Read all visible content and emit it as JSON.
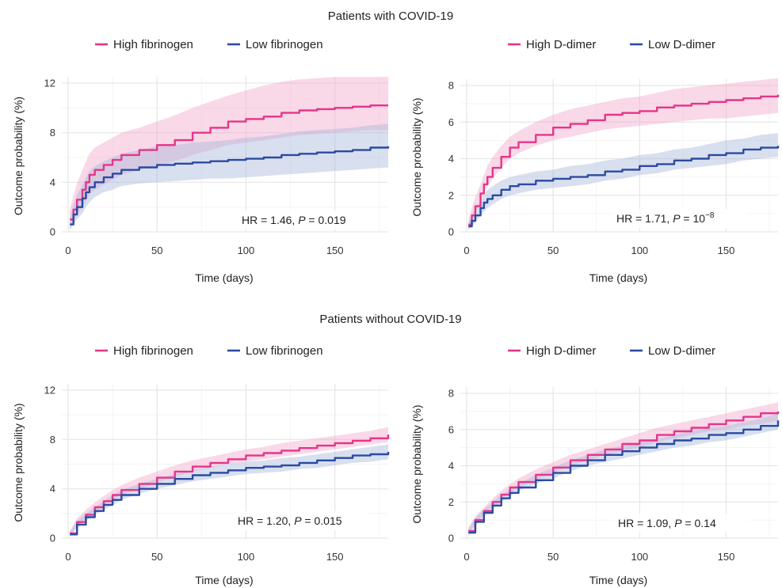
{
  "colors": {
    "high": "#e5358a",
    "low": "#2b4aa2",
    "high_band": "#f2a9cb",
    "low_band": "#a9b7db"
  },
  "sections": [
    {
      "title": "Patients with COVID-19"
    },
    {
      "title": "Patients without COVID-19"
    }
  ],
  "chart_data": [
    {
      "type": "line",
      "section": 0,
      "xlabel": "Time (days)",
      "ylabel": "Outcome probability (%)",
      "xlim": [
        0,
        180
      ],
      "ylim": [
        0,
        12
      ],
      "xticks": [
        0,
        50,
        100,
        150
      ],
      "yticks": [
        0,
        4,
        8,
        12
      ],
      "legend_position": "top",
      "annotation": {
        "prefix": "HR = 1.46, ",
        "p_label": "P",
        "p_value": " = 0.019"
      },
      "series": [
        {
          "name": "High fibrinogen",
          "color_key": "high",
          "x": [
            1,
            3,
            5,
            8,
            10,
            12,
            15,
            20,
            25,
            30,
            40,
            50,
            60,
            70,
            80,
            90,
            100,
            110,
            120,
            130,
            140,
            150,
            160,
            170,
            180
          ],
          "y": [
            1.0,
            1.8,
            2.6,
            3.4,
            4.0,
            4.6,
            5.0,
            5.4,
            5.8,
            6.2,
            6.6,
            7.0,
            7.4,
            8.0,
            8.4,
            8.9,
            9.1,
            9.3,
            9.6,
            9.8,
            9.9,
            10.0,
            10.1,
            10.2,
            10.2
          ],
          "lower": [
            0.3,
            0.8,
            1.4,
            2.0,
            2.5,
            3.0,
            3.4,
            3.8,
            4.2,
            4.6,
            5.0,
            5.3,
            5.7,
            6.2,
            6.6,
            7.0,
            7.2,
            7.4,
            7.6,
            7.8,
            7.9,
            8.0,
            8.1,
            8.2,
            8.2
          ],
          "upper": [
            1.8,
            2.9,
            3.9,
            5.0,
            5.7,
            6.3,
            6.8,
            7.2,
            7.6,
            8.0,
            8.4,
            8.9,
            9.4,
            10.0,
            10.5,
            11.0,
            11.4,
            11.8,
            12.1,
            12.3,
            12.4,
            12.5,
            12.5,
            12.5,
            12.5
          ]
        },
        {
          "name": "Low fibrinogen",
          "color_key": "low",
          "x": [
            1,
            3,
            5,
            8,
            10,
            12,
            15,
            20,
            25,
            30,
            40,
            50,
            60,
            70,
            80,
            90,
            100,
            110,
            120,
            130,
            140,
            150,
            160,
            170,
            180
          ],
          "y": [
            0.6,
            1.4,
            2.0,
            2.7,
            3.2,
            3.6,
            4.0,
            4.4,
            4.7,
            5.0,
            5.2,
            5.4,
            5.5,
            5.6,
            5.7,
            5.8,
            5.9,
            6.0,
            6.2,
            6.3,
            6.4,
            6.5,
            6.6,
            6.8,
            6.9
          ],
          "lower": [
            0.1,
            0.6,
            1.0,
            1.5,
            2.0,
            2.4,
            2.8,
            3.2,
            3.4,
            3.7,
            3.9,
            4.0,
            4.1,
            4.2,
            4.3,
            4.3,
            4.4,
            4.5,
            4.6,
            4.7,
            4.8,
            4.9,
            5.0,
            5.1,
            5.2
          ],
          "upper": [
            1.2,
            2.2,
            3.0,
            3.8,
            4.4,
            4.9,
            5.3,
            5.7,
            6.0,
            6.3,
            6.6,
            6.9,
            7.0,
            7.2,
            7.3,
            7.4,
            7.6,
            7.7,
            7.9,
            8.1,
            8.2,
            8.3,
            8.4,
            8.6,
            8.7
          ]
        }
      ]
    },
    {
      "type": "line",
      "section": 0,
      "xlabel": "Time (days)",
      "ylabel": "Outcome probability (%)",
      "xlim": [
        0,
        180
      ],
      "ylim": [
        0,
        8
      ],
      "xticks": [
        0,
        50,
        100,
        150
      ],
      "yticks": [
        0,
        2,
        4,
        6,
        8
      ],
      "legend_position": "top",
      "annotation": {
        "prefix": "HR = 1.71, ",
        "p_label": "P",
        "p_value": " = 10",
        "p_exp": "−8"
      },
      "series": [
        {
          "name": "High D-dimer",
          "color_key": "high",
          "x": [
            1,
            3,
            5,
            8,
            10,
            12,
            15,
            20,
            25,
            30,
            40,
            50,
            60,
            70,
            80,
            90,
            100,
            110,
            120,
            130,
            140,
            150,
            160,
            170,
            180
          ],
          "y": [
            0.4,
            0.9,
            1.4,
            2.1,
            2.6,
            3.0,
            3.5,
            4.1,
            4.6,
            4.9,
            5.3,
            5.7,
            5.9,
            6.1,
            6.4,
            6.5,
            6.6,
            6.8,
            6.9,
            7.0,
            7.1,
            7.2,
            7.3,
            7.4,
            7.5
          ],
          "lower": [
            0.2,
            0.6,
            1.0,
            1.6,
            2.1,
            2.5,
            2.9,
            3.5,
            4.0,
            4.3,
            4.7,
            5.0,
            5.2,
            5.4,
            5.6,
            5.7,
            5.8,
            5.9,
            6.0,
            6.1,
            6.2,
            6.2,
            6.3,
            6.4,
            6.5
          ],
          "upper": [
            0.7,
            1.3,
            1.9,
            2.6,
            3.1,
            3.6,
            4.1,
            4.7,
            5.2,
            5.5,
            6.0,
            6.4,
            6.7,
            6.9,
            7.1,
            7.3,
            7.4,
            7.6,
            7.8,
            7.9,
            8.0,
            8.1,
            8.2,
            8.3,
            8.4
          ]
        },
        {
          "name": "Low D-dimer",
          "color_key": "low",
          "x": [
            1,
            3,
            5,
            8,
            10,
            12,
            15,
            20,
            25,
            30,
            40,
            50,
            60,
            70,
            80,
            90,
            100,
            110,
            120,
            130,
            140,
            150,
            160,
            170,
            180
          ],
          "y": [
            0.3,
            0.6,
            0.9,
            1.3,
            1.6,
            1.8,
            2.0,
            2.3,
            2.5,
            2.6,
            2.8,
            2.9,
            3.0,
            3.1,
            3.3,
            3.4,
            3.6,
            3.7,
            3.9,
            4.0,
            4.2,
            4.3,
            4.5,
            4.6,
            4.7
          ],
          "lower": [
            0.1,
            0.3,
            0.5,
            0.9,
            1.1,
            1.3,
            1.5,
            1.8,
            2.0,
            2.1,
            2.3,
            2.4,
            2.5,
            2.6,
            2.8,
            2.9,
            3.1,
            3.2,
            3.4,
            3.5,
            3.6,
            3.7,
            3.9,
            4.0,
            4.1
          ],
          "upper": [
            0.5,
            0.9,
            1.3,
            1.7,
            2.0,
            2.3,
            2.5,
            2.8,
            3.0,
            3.1,
            3.3,
            3.4,
            3.6,
            3.7,
            3.9,
            4.0,
            4.2,
            4.3,
            4.5,
            4.6,
            4.8,
            5.0,
            5.1,
            5.3,
            5.4
          ]
        }
      ]
    },
    {
      "type": "line",
      "section": 1,
      "xlabel": "Time (days)",
      "ylabel": "Outcome probability (%)",
      "xlim": [
        0,
        180
      ],
      "ylim": [
        0,
        12
      ],
      "xticks": [
        0,
        50,
        100,
        150
      ],
      "yticks": [
        0,
        4,
        8,
        12
      ],
      "legend_position": "top",
      "annotation": {
        "prefix": "HR = 1.20, ",
        "p_label": "P",
        "p_value": " = 0.015"
      },
      "series": [
        {
          "name": "High fibrinogen",
          "color_key": "high",
          "x": [
            1,
            5,
            10,
            15,
            20,
            25,
            30,
            40,
            50,
            60,
            70,
            80,
            90,
            100,
            110,
            120,
            130,
            140,
            150,
            160,
            170,
            180
          ],
          "y": [
            0.4,
            1.3,
            1.9,
            2.5,
            3.0,
            3.5,
            3.9,
            4.4,
            4.9,
            5.4,
            5.8,
            6.1,
            6.4,
            6.7,
            6.9,
            7.1,
            7.3,
            7.5,
            7.7,
            7.9,
            8.1,
            8.4
          ],
          "lower": [
            0.2,
            1.0,
            1.6,
            2.2,
            2.7,
            3.1,
            3.5,
            4.0,
            4.5,
            5.0,
            5.4,
            5.7,
            6.0,
            6.2,
            6.4,
            6.6,
            6.8,
            7.0,
            7.2,
            7.4,
            7.6,
            7.8
          ],
          "upper": [
            0.6,
            1.6,
            2.3,
            2.9,
            3.4,
            3.9,
            4.3,
            4.9,
            5.4,
            5.9,
            6.3,
            6.6,
            6.9,
            7.2,
            7.4,
            7.7,
            7.9,
            8.1,
            8.3,
            8.5,
            8.7,
            9.0
          ]
        },
        {
          "name": "Low fibrinogen",
          "color_key": "low",
          "x": [
            1,
            5,
            10,
            15,
            20,
            25,
            30,
            40,
            50,
            60,
            70,
            80,
            90,
            100,
            110,
            120,
            130,
            140,
            150,
            160,
            170,
            180
          ],
          "y": [
            0.3,
            1.1,
            1.7,
            2.2,
            2.7,
            3.1,
            3.5,
            4.0,
            4.4,
            4.8,
            5.1,
            5.3,
            5.5,
            5.7,
            5.8,
            5.9,
            6.1,
            6.3,
            6.5,
            6.7,
            6.8,
            7.0
          ],
          "lower": [
            0.1,
            0.8,
            1.4,
            1.9,
            2.3,
            2.7,
            3.1,
            3.6,
            4.0,
            4.3,
            4.6,
            4.8,
            5.0,
            5.2,
            5.3,
            5.4,
            5.6,
            5.7,
            5.9,
            6.1,
            6.2,
            6.4
          ],
          "upper": [
            0.5,
            1.4,
            2.0,
            2.5,
            3.0,
            3.5,
            3.9,
            4.4,
            4.8,
            5.2,
            5.5,
            5.8,
            6.0,
            6.2,
            6.3,
            6.5,
            6.6,
            6.8,
            7.0,
            7.2,
            7.4,
            7.6
          ]
        }
      ]
    },
    {
      "type": "line",
      "section": 1,
      "xlabel": "Time (days)",
      "ylabel": "Outcome probability (%)",
      "xlim": [
        0,
        180
      ],
      "ylim": [
        0,
        8
      ],
      "xticks": [
        0,
        50,
        100,
        150
      ],
      "yticks": [
        0,
        2,
        4,
        6,
        8
      ],
      "legend_position": "top",
      "annotation": {
        "prefix": "HR = 1.09, ",
        "p_label": "P",
        "p_value": " = 0.14"
      },
      "series": [
        {
          "name": "High D-dimer",
          "color_key": "high",
          "x": [
            1,
            5,
            10,
            15,
            20,
            25,
            30,
            40,
            50,
            60,
            70,
            80,
            90,
            100,
            110,
            120,
            130,
            140,
            150,
            160,
            170,
            180
          ],
          "y": [
            0.4,
            1.0,
            1.5,
            2.0,
            2.4,
            2.8,
            3.1,
            3.5,
            3.9,
            4.3,
            4.6,
            4.9,
            5.2,
            5.4,
            5.7,
            5.9,
            6.1,
            6.3,
            6.5,
            6.7,
            6.9,
            7.0
          ],
          "lower": [
            0.2,
            0.8,
            1.3,
            1.8,
            2.2,
            2.5,
            2.8,
            3.2,
            3.6,
            4.0,
            4.3,
            4.6,
            4.8,
            5.0,
            5.3,
            5.5,
            5.7,
            5.9,
            6.0,
            6.2,
            6.3,
            6.5
          ],
          "upper": [
            0.6,
            1.2,
            1.7,
            2.2,
            2.6,
            3.0,
            3.3,
            3.8,
            4.2,
            4.6,
            4.9,
            5.2,
            5.5,
            5.8,
            6.1,
            6.3,
            6.5,
            6.7,
            6.9,
            7.1,
            7.3,
            7.5
          ]
        },
        {
          "name": "Low D-dimer",
          "color_key": "low",
          "x": [
            1,
            5,
            10,
            15,
            20,
            25,
            30,
            40,
            50,
            60,
            70,
            80,
            90,
            100,
            110,
            120,
            130,
            140,
            150,
            160,
            170,
            180
          ],
          "y": [
            0.3,
            0.9,
            1.4,
            1.8,
            2.2,
            2.5,
            2.8,
            3.2,
            3.6,
            4.0,
            4.3,
            4.6,
            4.8,
            5.0,
            5.2,
            5.4,
            5.5,
            5.7,
            5.8,
            6.0,
            6.2,
            6.5
          ],
          "lower": [
            0.1,
            0.7,
            1.2,
            1.6,
            2.0,
            2.3,
            2.6,
            3.0,
            3.3,
            3.7,
            4.0,
            4.2,
            4.4,
            4.6,
            4.8,
            5.0,
            5.1,
            5.3,
            5.4,
            5.6,
            5.8,
            6.0
          ],
          "upper": [
            0.5,
            1.1,
            1.6,
            2.0,
            2.4,
            2.7,
            3.0,
            3.5,
            3.9,
            4.3,
            4.6,
            4.9,
            5.1,
            5.3,
            5.5,
            5.7,
            5.9,
            6.1,
            6.2,
            6.4,
            6.6,
            6.9
          ]
        }
      ]
    }
  ]
}
